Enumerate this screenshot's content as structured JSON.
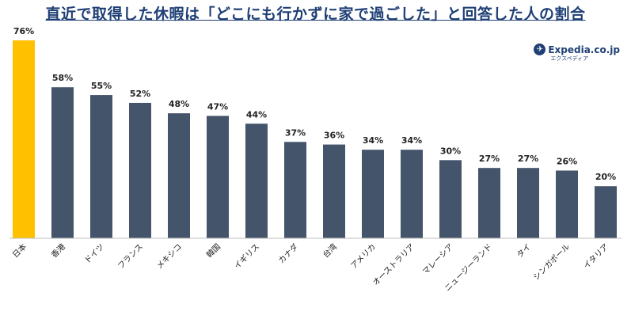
{
  "title": "直近で取得した休暇は「どこにも行かずに家で過ごした」と回答した人の割合",
  "logo": {
    "name": "Expedia.co.jp",
    "sub": "エクスペディア"
  },
  "colors": {
    "highlight": "#ffc000",
    "bar": "#44546a",
    "title": "#1f3f75",
    "highlight_label": "#c00000"
  },
  "chart_data": {
    "type": "bar",
    "categories": [
      "日本",
      "香港",
      "ドイツ",
      "フランス",
      "メキシコ",
      "韓国",
      "イギリス",
      "カナダ",
      "台湾",
      "アメリカ",
      "オーストラリア",
      "マレーシア",
      "ニュージーランド",
      "タイ",
      "シンガポール",
      "イタリア"
    ],
    "values": [
      76,
      58,
      55,
      52,
      48,
      47,
      44,
      37,
      36,
      34,
      34,
      30,
      27,
      27,
      26,
      20
    ],
    "value_labels": [
      "76%",
      "58%",
      "55%",
      "52%",
      "48%",
      "47%",
      "44%",
      "37%",
      "36%",
      "34%",
      "34%",
      "30%",
      "27%",
      "27%",
      "26%",
      "20%"
    ],
    "highlight_index": 0,
    "ylim": [
      0,
      76
    ],
    "grid": false,
    "legend": "none"
  }
}
